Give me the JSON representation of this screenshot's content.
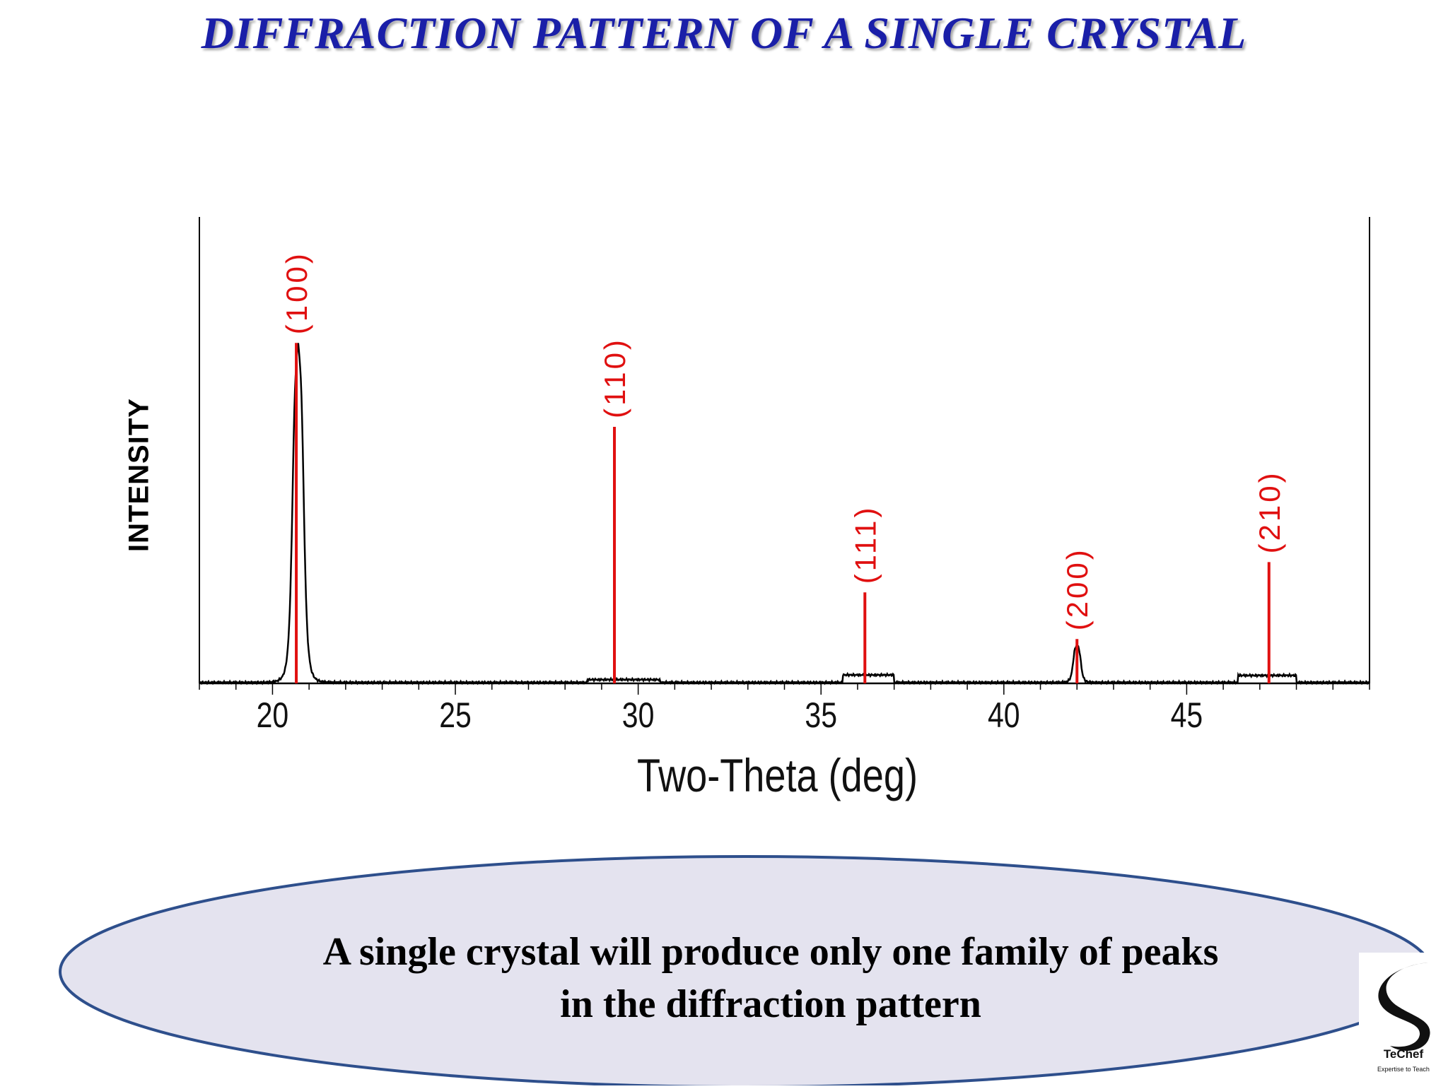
{
  "slide": {
    "title": "DIFFRACTION PATTERN OF A SINGLE CRYSTAL",
    "callout_line1": "A single crystal will produce only one family of peaks",
    "callout_line2": "in the diffraction pattern",
    "logo_name": "TeChef",
    "logo_tagline": "Expertise to Teach",
    "colors": {
      "title": "#1a1fa8",
      "peak_marker": "#e01010",
      "callout_fill": "#e4e3ef",
      "callout_border": "#2e4f8c"
    }
  },
  "chart_data": {
    "type": "line",
    "title": "",
    "xlabel": "Two-Theta (deg)",
    "ylabel": "INTENSITY",
    "xlim": [
      18,
      50
    ],
    "ylim": [
      0,
      100
    ],
    "xticks": [
      20,
      25,
      30,
      35,
      40,
      45
    ],
    "x_minor_tick_step": 1,
    "grid": false,
    "legend": "none",
    "series": [
      {
        "peaks": [
          {
            "x": 20.7,
            "y": 73,
            "width": 0.18
          },
          {
            "x": 42.0,
            "y": 8,
            "width": 0.12
          }
        ],
        "humps": [
          {
            "x0": 28.6,
            "x1": 30.6,
            "y": 0.6
          },
          {
            "x0": 35.6,
            "x1": 37.0,
            "y": 1.6
          },
          {
            "x0": 46.4,
            "x1": 48.0,
            "y": 1.5
          }
        ],
        "baseline": 0.2
      }
    ],
    "reflections": [
      {
        "label": "(100)",
        "x": 20.65,
        "y": 73
      },
      {
        "label": "(110)",
        "x": 29.35,
        "y": 55
      },
      {
        "label": "(111)",
        "x": 36.2,
        "y": 19.5
      },
      {
        "label": "(200)",
        "x": 42.0,
        "y": 9.5
      },
      {
        "label": "(210)",
        "x": 47.25,
        "y": 26
      }
    ]
  }
}
